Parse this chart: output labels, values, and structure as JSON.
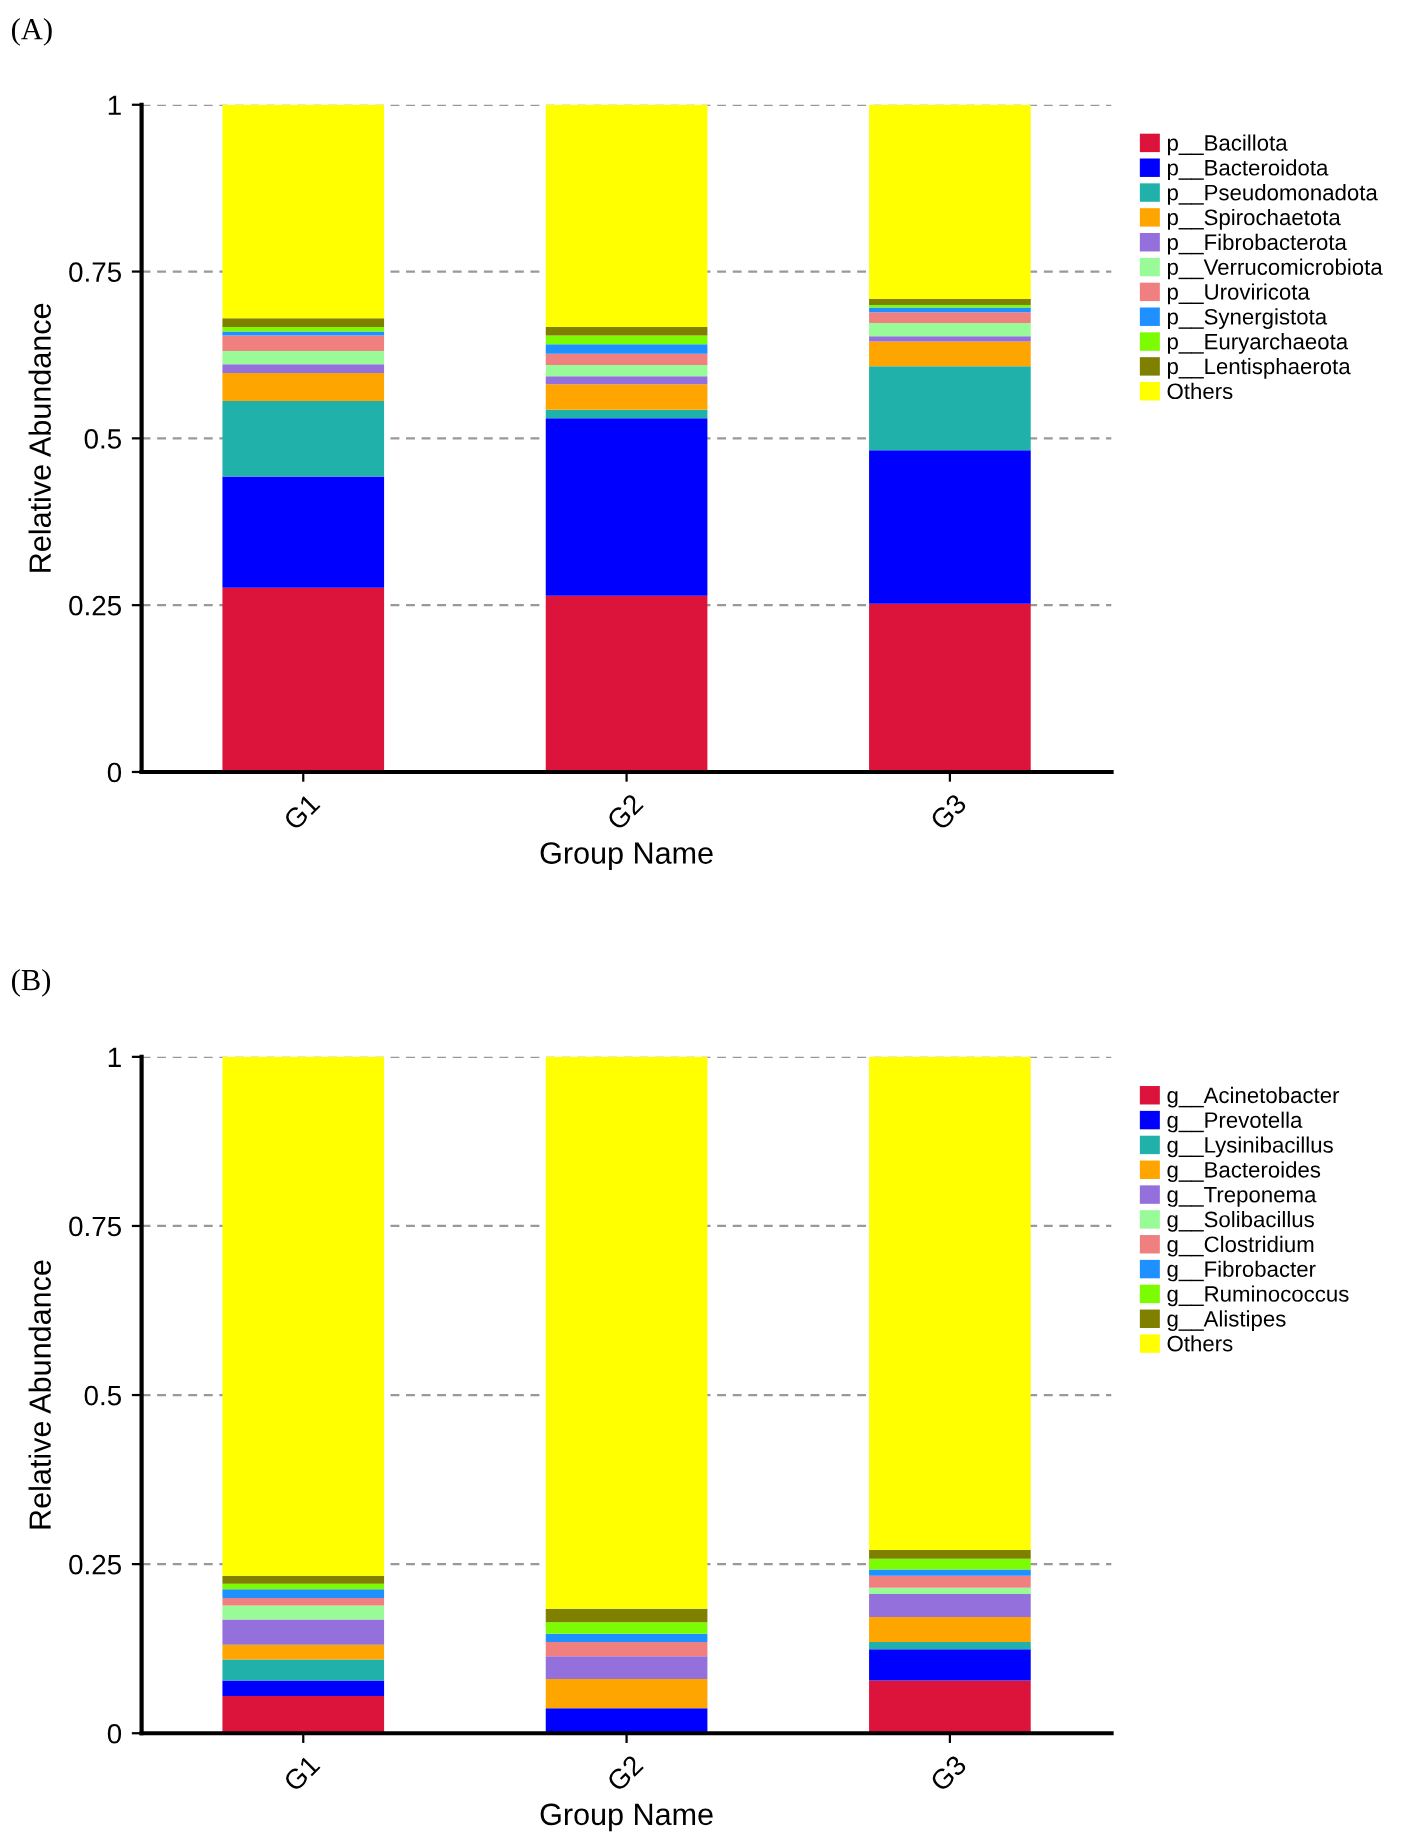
{
  "chart_data": [
    {
      "type": "bar",
      "stacked": true,
      "annotations": [
        "(A)"
      ],
      "xlabel": "Group Name",
      "ylabel": "Relative Abundance",
      "categories": [
        "G1",
        "G2",
        "G3"
      ],
      "ylim": [
        0,
        1
      ],
      "yticks": [
        0,
        0.25,
        0.5,
        0.75,
        1
      ],
      "grid": "y",
      "legend": "top right",
      "series": [
        {
          "name": "p__Bacillota",
          "color": "#dc143c",
          "values": [
            0.276,
            0.264,
            0.252
          ]
        },
        {
          "name": "p__Bacteroidota",
          "color": "#0000ff",
          "values": [
            0.167,
            0.266,
            0.23
          ]
        },
        {
          "name": "p__Pseudomonadota",
          "color": "#20b2aa",
          "values": [
            0.113,
            0.013,
            0.126
          ]
        },
        {
          "name": "p__Spirochaetota",
          "color": "#ffa500",
          "values": [
            0.042,
            0.038,
            0.037
          ]
        },
        {
          "name": "p__Fibrobacterota",
          "color": "#9370db",
          "values": [
            0.013,
            0.012,
            0.008
          ]
        },
        {
          "name": "p__Verrucomicrobiota",
          "color": "#98fb98",
          "values": [
            0.02,
            0.017,
            0.02
          ]
        },
        {
          "name": "p__Uroviricota",
          "color": "#f08080",
          "values": [
            0.023,
            0.017,
            0.016
          ]
        },
        {
          "name": "p__Synergistota",
          "color": "#1e90ff",
          "values": [
            0.006,
            0.014,
            0.007
          ]
        },
        {
          "name": "p__Euryarchaeota",
          "color": "#7cfc00",
          "values": [
            0.007,
            0.013,
            0.004
          ]
        },
        {
          "name": "p__Lentisphaerota",
          "color": "#808000",
          "values": [
            0.013,
            0.013,
            0.009
          ]
        },
        {
          "name": "Others",
          "color": "#ffff00",
          "values": [
            0.32,
            0.333,
            0.291
          ]
        }
      ]
    },
    {
      "type": "bar",
      "stacked": true,
      "annotations": [
        "(B)"
      ],
      "xlabel": "Group Name",
      "ylabel": "Relative Abundance",
      "categories": [
        "G1",
        "G2",
        "G3"
      ],
      "ylim": [
        0,
        1
      ],
      "yticks": [
        0,
        0.25,
        0.5,
        0.75,
        1
      ],
      "grid": "y",
      "legend": "top right",
      "series": [
        {
          "name": "g__Acinetobacter",
          "color": "#dc143c",
          "values": [
            0.055,
            0,
            0.078
          ]
        },
        {
          "name": "g__Prevotella",
          "color": "#0000ff",
          "values": [
            0.023,
            0.037,
            0.046
          ]
        },
        {
          "name": "g__Lysinibacillus",
          "color": "#20b2aa",
          "values": [
            0.031,
            0,
            0.011
          ]
        },
        {
          "name": "g__Bacteroides",
          "color": "#ffa500",
          "values": [
            0.022,
            0.043,
            0.037
          ]
        },
        {
          "name": "g__Treponema",
          "color": "#9370db",
          "values": [
            0.037,
            0.034,
            0.034
          ]
        },
        {
          "name": "g__Solibacillus",
          "color": "#98fb98",
          "values": [
            0.021,
            0,
            0.009
          ]
        },
        {
          "name": "g__Clostridium",
          "color": "#f08080",
          "values": [
            0.011,
            0.021,
            0.018
          ]
        },
        {
          "name": "g__Fibrobacter",
          "color": "#1e90ff",
          "values": [
            0.013,
            0.012,
            0.009
          ]
        },
        {
          "name": "g__Ruminococcus",
          "color": "#7cfc00",
          "values": [
            0.008,
            0.017,
            0.016
          ]
        },
        {
          "name": "g__Alistipes",
          "color": "#808000",
          "values": [
            0.012,
            0.02,
            0.013
          ]
        },
        {
          "name": "Others",
          "color": "#ffff00",
          "values": [
            0.767,
            0.816,
            0.729
          ]
        }
      ]
    }
  ]
}
